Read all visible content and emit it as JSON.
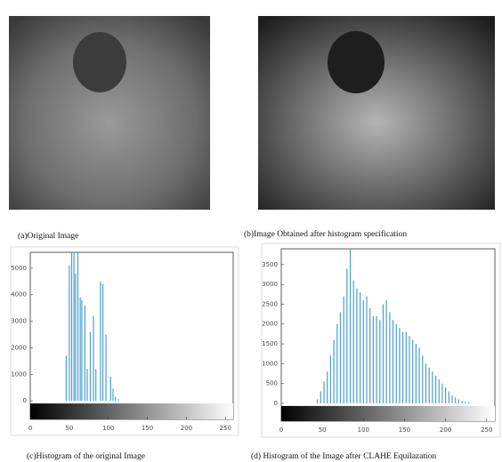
{
  "captions": [
    "(a)Original Image",
    "(b)Image Obtained after histogram specification",
    "(c)Histogram of the original Image",
    "(d) Histogram of the Image after CLAHE Equilazation"
  ],
  "chart_data": [
    {
      "type": "bar",
      "color": "#4a9fd4",
      "x": [
        46,
        50,
        53,
        56,
        58,
        61,
        64,
        66,
        70,
        73,
        77,
        81,
        84,
        90,
        93,
        97,
        103,
        106,
        109,
        113
      ],
      "values": [
        1700,
        5100,
        5600,
        5600,
        4800,
        5600,
        3900,
        3800,
        3600,
        1200,
        2600,
        3200,
        1200,
        4500,
        4400,
        2500,
        900,
        450,
        150,
        60
      ],
      "xlim": [
        0,
        260
      ],
      "xticks": [
        0,
        50,
        100,
        150,
        200,
        250
      ],
      "ylim": [
        -700,
        5600
      ],
      "yticks": [
        0,
        1000,
        2000,
        3000,
        4000,
        5000
      ]
    },
    {
      "type": "bar",
      "color": "#4a9fd4",
      "x": [
        44,
        48,
        52,
        56,
        60,
        64,
        68,
        72,
        76,
        80,
        84,
        88,
        92,
        96,
        100,
        104,
        108,
        112,
        116,
        120,
        124,
        128,
        132,
        136,
        140,
        144,
        148,
        152,
        156,
        160,
        164,
        168,
        172,
        176,
        180,
        184,
        188,
        192,
        196,
        200,
        204,
        208,
        212,
        216,
        220,
        224,
        228
      ],
      "values": [
        100,
        300,
        550,
        800,
        1200,
        1600,
        2000,
        2300,
        2700,
        3400,
        3900,
        3100,
        2900,
        2800,
        2600,
        2700,
        2400,
        2200,
        2200,
        2100,
        2500,
        2600,
        2300,
        2100,
        2000,
        1900,
        1800,
        1800,
        1700,
        1600,
        1500,
        1400,
        1200,
        1000,
        900,
        800,
        700,
        600,
        500,
        400,
        300,
        200,
        150,
        100,
        60,
        40,
        20
      ],
      "xlim": [
        0,
        260
      ],
      "xticks": [
        0,
        50,
        100,
        150,
        200,
        250
      ],
      "ylim": [
        -450,
        3900
      ],
      "yticks": [
        0,
        500,
        1000,
        1500,
        2000,
        2500,
        3000,
        3500
      ]
    }
  ]
}
